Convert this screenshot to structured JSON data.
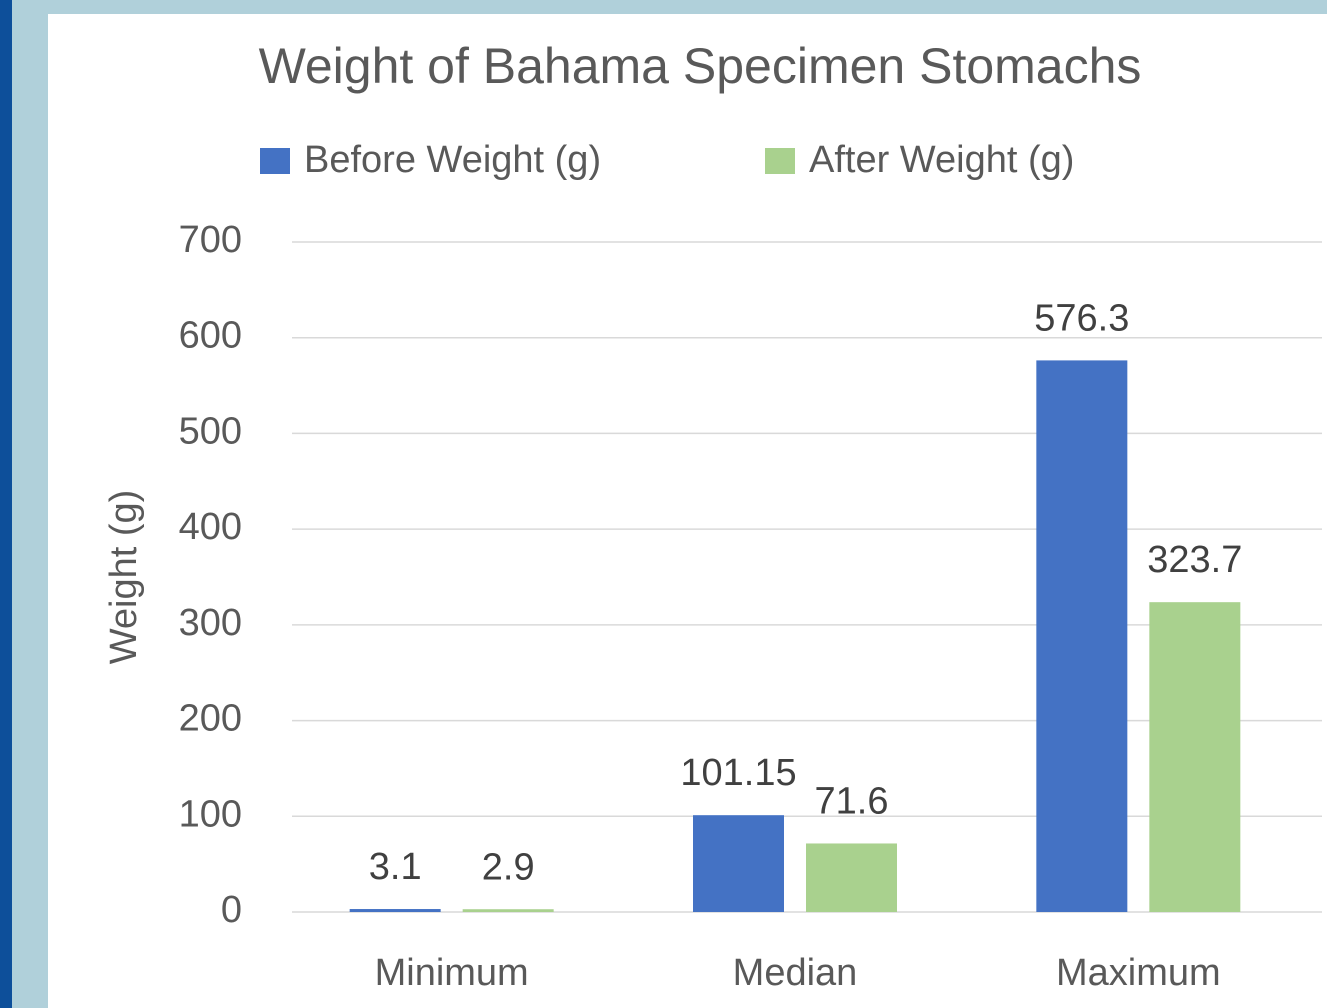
{
  "chart_data": {
    "type": "bar",
    "title": "Weight of Bahama Specimen Stomachs",
    "ylabel": "Weight (g)",
    "categories": [
      "Minimum",
      "Median",
      "Maximum"
    ],
    "series": [
      {
        "name": "Before Weight (g)",
        "color": "#4472c4",
        "values": [
          3.1,
          101.15,
          576.3
        ]
      },
      {
        "name": "After Weight (g)",
        "color": "#a9d18e",
        "values": [
          2.9,
          71.6,
          323.7
        ]
      }
    ],
    "ylim": [
      0,
      700
    ],
    "yticks": [
      0,
      100,
      200,
      300,
      400,
      500,
      600,
      700
    ],
    "grid": true,
    "legend": "top"
  }
}
